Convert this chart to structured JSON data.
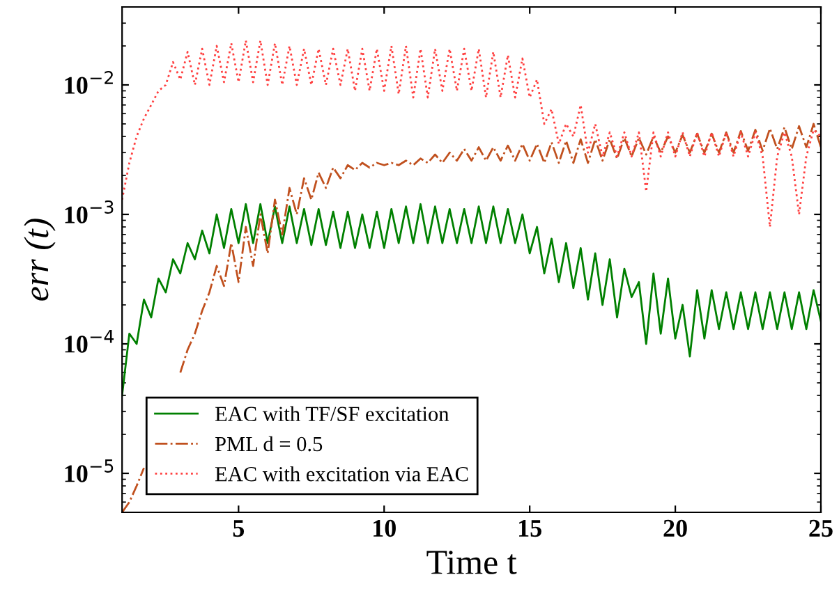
{
  "chart_data": {
    "type": "line",
    "xlabel": "Time t",
    "ylabel": "err (t)",
    "x": [
      1,
      1.25,
      1.5,
      1.75,
      2,
      2.25,
      2.5,
      2.75,
      3,
      3.25,
      3.5,
      3.75,
      4,
      4.25,
      4.5,
      4.75,
      5,
      5.25,
      5.5,
      5.75,
      6,
      6.25,
      6.5,
      6.75,
      7,
      7.25,
      7.5,
      7.75,
      8,
      8.25,
      8.5,
      8.75,
      9,
      9.25,
      9.5,
      9.75,
      10,
      10.25,
      10.5,
      10.75,
      11,
      11.25,
      11.5,
      11.75,
      12,
      12.25,
      12.5,
      12.75,
      13,
      13.25,
      13.5,
      13.75,
      14,
      14.25,
      14.5,
      14.75,
      15,
      15.25,
      15.5,
      15.75,
      16,
      16.25,
      16.5,
      16.75,
      17,
      17.25,
      17.5,
      17.75,
      18,
      18.25,
      18.5,
      18.75,
      19,
      19.25,
      19.5,
      19.75,
      20,
      20.25,
      20.5,
      20.75,
      21,
      21.25,
      21.5,
      21.75,
      22,
      22.25,
      22.5,
      22.75,
      23,
      23.25,
      23.5,
      23.75,
      24,
      24.25,
      24.5,
      24.75,
      25
    ],
    "series": [
      {
        "name": "EAC with TF/SF excitation",
        "color": "#008000",
        "line_style": "solid",
        "values": [
          4e-05,
          0.00012,
          0.0001,
          0.00022,
          0.00016,
          0.00032,
          0.00025,
          0.00045,
          0.00035,
          0.0006,
          0.00045,
          0.00075,
          0.0005,
          0.001,
          0.00055,
          0.0011,
          0.0006,
          0.0012,
          0.0006,
          0.0012,
          0.0006,
          0.00115,
          0.0006,
          0.00115,
          0.0006,
          0.0011,
          0.00058,
          0.0011,
          0.00058,
          0.00105,
          0.00055,
          0.00105,
          0.00055,
          0.001,
          0.00055,
          0.00105,
          0.00055,
          0.0011,
          0.0006,
          0.00115,
          0.0006,
          0.0012,
          0.0006,
          0.00115,
          0.0006,
          0.0011,
          0.0006,
          0.0011,
          0.0006,
          0.00115,
          0.0006,
          0.00115,
          0.0006,
          0.0011,
          0.0006,
          0.001,
          0.0005,
          0.0008,
          0.00035,
          0.00065,
          0.0003,
          0.0006,
          0.00027,
          0.00055,
          0.00022,
          0.0005,
          0.0002,
          0.00045,
          0.00016,
          0.00038,
          0.00023,
          0.0003,
          0.0001,
          0.00035,
          0.00012,
          0.00032,
          0.00011,
          0.0002,
          8e-05,
          0.00026,
          0.00011,
          0.00026,
          0.00013,
          0.00025,
          0.00013,
          0.00025,
          0.00013,
          0.00025,
          0.00013,
          0.00025,
          0.00013,
          0.00025,
          0.00013,
          0.00025,
          0.00013,
          0.00026,
          0.00015
        ]
      },
      {
        "name": "PML d = 0.5",
        "color": "#c0501e",
        "line_style": "dashdot",
        "values": [
          5e-06,
          6e-06,
          8e-06,
          1.1e-05,
          null,
          null,
          null,
          null,
          6e-05,
          9e-05,
          0.00012,
          0.00018,
          0.00025,
          0.0004,
          0.00028,
          0.0006,
          0.0003,
          0.0008,
          0.0004,
          0.001,
          0.0005,
          0.0013,
          0.0007,
          0.0016,
          0.001,
          0.0019,
          0.0013,
          0.0021,
          0.0016,
          0.0023,
          0.0019,
          0.0024,
          0.0022,
          0.0025,
          0.0023,
          0.0025,
          0.0024,
          0.0025,
          0.0024,
          0.0026,
          0.0024,
          0.0027,
          0.0025,
          0.0029,
          0.0025,
          0.003,
          0.0026,
          0.0032,
          0.0026,
          0.0033,
          0.0026,
          0.0033,
          0.0026,
          0.0034,
          0.0026,
          0.0035,
          0.0026,
          0.0035,
          0.0025,
          0.0036,
          0.0025,
          0.0037,
          0.0025,
          0.0038,
          0.0025,
          0.0038,
          0.0026,
          0.0038,
          0.0027,
          0.0039,
          0.0028,
          0.0039,
          0.0029,
          0.004,
          0.003,
          0.004,
          0.003,
          0.0041,
          0.003,
          0.0042,
          0.003,
          0.0042,
          0.003,
          0.0043,
          0.003,
          0.0044,
          0.0031,
          0.0045,
          0.0031,
          0.0046,
          0.0032,
          0.0047,
          0.0032,
          0.0048,
          0.0033,
          0.005,
          0.0033
        ]
      },
      {
        "name": "EAC with excitation via EAC",
        "color": "#ff4040",
        "line_style": "dotted",
        "values": [
          0.0013,
          0.0025,
          0.004,
          0.0055,
          0.007,
          0.009,
          0.01,
          0.015,
          0.011,
          0.018,
          0.01,
          0.019,
          0.01,
          0.02,
          0.0105,
          0.021,
          0.0105,
          0.022,
          0.0105,
          0.022,
          0.01,
          0.021,
          0.01,
          0.02,
          0.01,
          0.019,
          0.01,
          0.019,
          0.01,
          0.019,
          0.01,
          0.019,
          0.009,
          0.019,
          0.009,
          0.019,
          0.009,
          0.02,
          0.0085,
          0.02,
          0.008,
          0.019,
          0.008,
          0.019,
          0.009,
          0.019,
          0.009,
          0.019,
          0.009,
          0.019,
          0.008,
          0.018,
          0.008,
          0.017,
          0.008,
          0.016,
          0.008,
          0.011,
          0.005,
          0.0065,
          0.0035,
          0.005,
          0.004,
          0.007,
          0.003,
          0.005,
          0.0028,
          0.0043,
          0.0028,
          0.0043,
          0.0028,
          0.0043,
          0.0015,
          0.0043,
          0.0028,
          0.0043,
          0.0028,
          0.0043,
          0.0028,
          0.0043,
          0.0028,
          0.0043,
          0.0028,
          0.0043,
          0.0028,
          0.0043,
          0.0028,
          0.0043,
          0.0028,
          0.0008,
          0.0028,
          0.0043,
          0.0028,
          0.001,
          0.0028,
          0.0045,
          0.004
        ]
      }
    ],
    "log": "y",
    "xlim": [
      1,
      25
    ],
    "xticks": [
      5,
      10,
      15,
      20,
      25
    ],
    "ylim": [
      5e-06,
      0.04
    ],
    "yticks": [
      {
        "value": 1e-05,
        "label": "10$^{−5}$"
      },
      {
        "value": 0.0001,
        "label": "10$^{−4}$"
      },
      {
        "value": 0.001,
        "label": "10$^{−3}$"
      },
      {
        "value": 0.01,
        "label": "10$^{−2}$"
      }
    ],
    "grid": false,
    "legend": "bottom left"
  }
}
